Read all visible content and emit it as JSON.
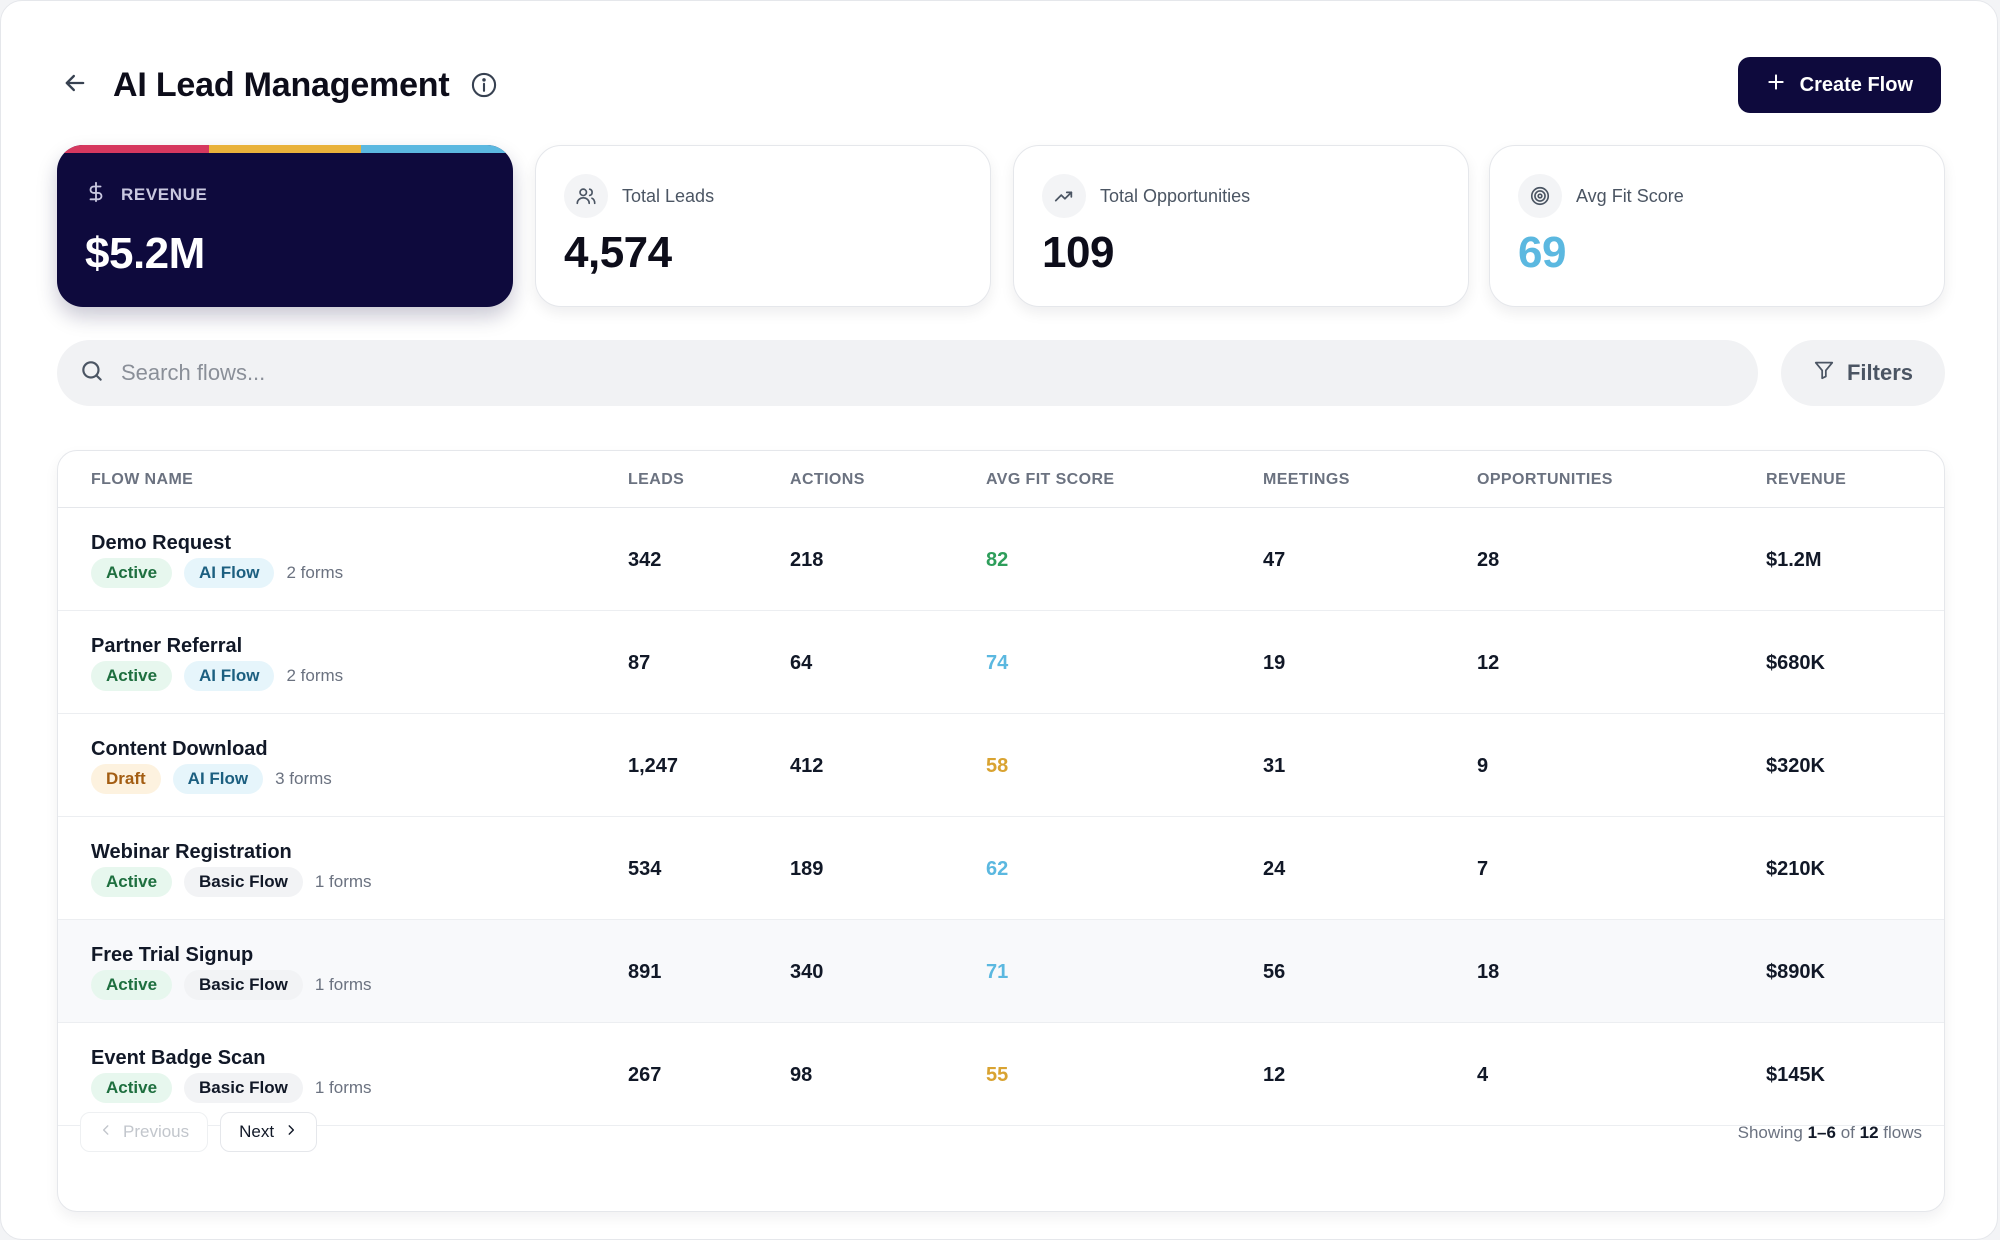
{
  "header": {
    "title": "AI Lead Management",
    "create_label": "Create Flow"
  },
  "stats": {
    "revenue": {
      "label": "REVENUE",
      "value": "$5.2M"
    },
    "total_leads": {
      "label": "Total Leads",
      "value": "4,574"
    },
    "total_opportunities": {
      "label": "Total Opportunities",
      "value": "109"
    },
    "avg_fit_score": {
      "label": "Avg Fit Score",
      "value": "69"
    }
  },
  "colors": {
    "brand": "#0e0a3d",
    "stripe_1": "#d6385f",
    "stripe_2": "#e9b23b",
    "stripe_3": "#5bb8e0",
    "score_high": "#2e9e5b",
    "score_mid": "#5bb8e0",
    "score_low": "#d9a331"
  },
  "search": {
    "placeholder": "Search flows..."
  },
  "filters_label": "Filters",
  "table": {
    "headers": {
      "flow_name": "FLOW NAME",
      "leads": "LEADS",
      "actions": "ACTIONS",
      "avg_fit_score": "AVG FIT SCORE",
      "meetings": "MEETINGS",
      "opportunities": "OPPORTUNITIES",
      "revenue": "REVENUE"
    },
    "rows": [
      {
        "name": "Demo Request",
        "status": "Active",
        "type": "AI Flow",
        "forms": "2 forms",
        "leads": "342",
        "actions": "218",
        "score": "82",
        "meetings": "47",
        "opportunities": "28",
        "revenue": "$1.2M"
      },
      {
        "name": "Partner Referral",
        "status": "Active",
        "type": "AI Flow",
        "forms": "2 forms",
        "leads": "87",
        "actions": "64",
        "score": "74",
        "meetings": "19",
        "opportunities": "12",
        "revenue": "$680K"
      },
      {
        "name": "Content Download",
        "status": "Draft",
        "type": "AI Flow",
        "forms": "3 forms",
        "leads": "1,247",
        "actions": "412",
        "score": "58",
        "meetings": "31",
        "opportunities": "9",
        "revenue": "$320K"
      },
      {
        "name": "Webinar Registration",
        "status": "Active",
        "type": "Basic Flow",
        "forms": "1 forms",
        "leads": "534",
        "actions": "189",
        "score": "62",
        "meetings": "24",
        "opportunities": "7",
        "revenue": "$210K"
      },
      {
        "name": "Free Trial Signup",
        "status": "Active",
        "type": "Basic Flow",
        "forms": "1 forms",
        "leads": "891",
        "actions": "340",
        "score": "71",
        "meetings": "56",
        "opportunities": "18",
        "revenue": "$890K"
      },
      {
        "name": "Event Badge Scan",
        "status": "Active",
        "type": "Basic Flow",
        "forms": "1 forms",
        "leads": "267",
        "actions": "98",
        "score": "55",
        "meetings": "12",
        "opportunities": "4",
        "revenue": "$145K"
      }
    ]
  },
  "pagination": {
    "previous_label": "Previous",
    "next_label": "Next",
    "showing_prefix": "Showing",
    "range": "1–6",
    "of_label": "of",
    "total": "12",
    "suffix": "flows"
  }
}
